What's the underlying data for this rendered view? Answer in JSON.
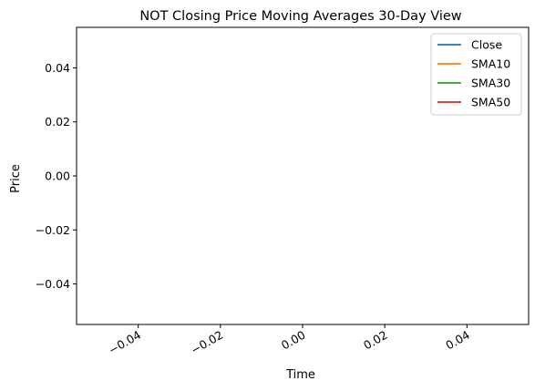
{
  "chart_data": {
    "type": "line",
    "title": "NOT Closing Price Moving Averages 30-Day View",
    "xlabel": "Time",
    "ylabel": "Price",
    "xlim": [
      -0.055,
      0.055
    ],
    "ylim": [
      -0.055,
      0.055
    ],
    "x_ticks": [
      -0.04,
      -0.02,
      0.0,
      0.02,
      0.04
    ],
    "x_tick_labels": [
      "−0.04",
      "−0.02",
      "0.00",
      "0.02",
      "0.04"
    ],
    "y_ticks": [
      0.04,
      0.02,
      0.0,
      -0.02,
      -0.04
    ],
    "y_tick_labels": [
      "0.04",
      "0.02",
      "0.00",
      "−0.02",
      "−0.04"
    ],
    "grid": false,
    "legend_position": "top-right",
    "series": [
      {
        "name": "Close",
        "color": "#1f77b4",
        "x": [],
        "values": []
      },
      {
        "name": "SMA10",
        "color": "#ff7f0e",
        "x": [],
        "values": []
      },
      {
        "name": "SMA30",
        "color": "#2ca02c",
        "x": [],
        "values": []
      },
      {
        "name": "SMA50",
        "color": "#d62728",
        "x": [],
        "values": []
      }
    ]
  }
}
